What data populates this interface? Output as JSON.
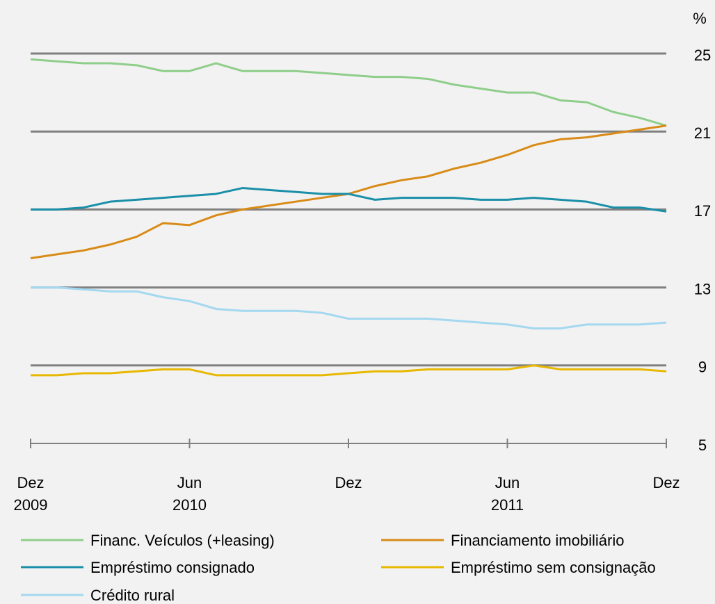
{
  "chart_data": {
    "type": "line",
    "unit_label": "%",
    "categories": [
      "Dez",
      null,
      null,
      null,
      null,
      null,
      "Jun",
      null,
      null,
      null,
      null,
      null,
      "Dez",
      null,
      null,
      null,
      null,
      null,
      "Jun",
      null,
      null,
      null,
      null,
      null,
      "Dez"
    ],
    "years": [
      "2009",
      null,
      null,
      null,
      null,
      null,
      "2010",
      null,
      null,
      null,
      null,
      null,
      null,
      null,
      null,
      null,
      null,
      null,
      "2011",
      null,
      null,
      null,
      null,
      null,
      null
    ],
    "ylim": [
      5,
      25
    ],
    "yticks": [
      25,
      21,
      17,
      13,
      9,
      5
    ],
    "grid": true,
    "series": [
      {
        "name": "Financ. Veículos  (+leasing)",
        "color": "#8fce8a",
        "values": [
          24.7,
          24.6,
          24.5,
          24.5,
          24.4,
          24.1,
          24.1,
          24.5,
          24.1,
          24.1,
          24.1,
          24.0,
          23.9,
          23.8,
          23.8,
          23.7,
          23.4,
          23.2,
          23.0,
          23.0,
          22.6,
          22.5,
          22.0,
          21.7,
          21.3
        ]
      },
      {
        "name": "Financiamento  imobiliário",
        "color": "#d98b17",
        "values": [
          14.5,
          14.7,
          14.9,
          15.2,
          15.6,
          16.3,
          16.2,
          16.7,
          17.0,
          17.2,
          17.4,
          17.6,
          17.8,
          18.2,
          18.5,
          18.7,
          19.1,
          19.4,
          19.8,
          20.3,
          20.6,
          20.7,
          20.9,
          21.1,
          21.3
        ]
      },
      {
        "name": "Empréstimo consignado",
        "color": "#1a8fa8",
        "values": [
          17.0,
          17.0,
          17.1,
          17.4,
          17.5,
          17.6,
          17.7,
          17.8,
          18.1,
          18.0,
          17.9,
          17.8,
          17.8,
          17.5,
          17.6,
          17.6,
          17.6,
          17.5,
          17.5,
          17.6,
          17.5,
          17.4,
          17.1,
          17.1,
          16.9
        ]
      },
      {
        "name": "Empréstimo sem consignação",
        "color": "#e8b800",
        "values": [
          8.5,
          8.5,
          8.6,
          8.6,
          8.7,
          8.8,
          8.8,
          8.5,
          8.5,
          8.5,
          8.5,
          8.5,
          8.6,
          8.7,
          8.7,
          8.8,
          8.8,
          8.8,
          8.8,
          9.0,
          8.8,
          8.8,
          8.8,
          8.8,
          8.7
        ]
      },
      {
        "name": "Crédito rural",
        "color": "#a3d8f0",
        "values": [
          13.0,
          13.0,
          12.9,
          12.8,
          12.8,
          12.5,
          12.3,
          11.9,
          11.8,
          11.8,
          11.8,
          11.7,
          11.4,
          11.4,
          11.4,
          11.4,
          11.3,
          11.2,
          11.1,
          10.9,
          10.9,
          11.1,
          11.1,
          11.1,
          11.2
        ]
      }
    ]
  }
}
